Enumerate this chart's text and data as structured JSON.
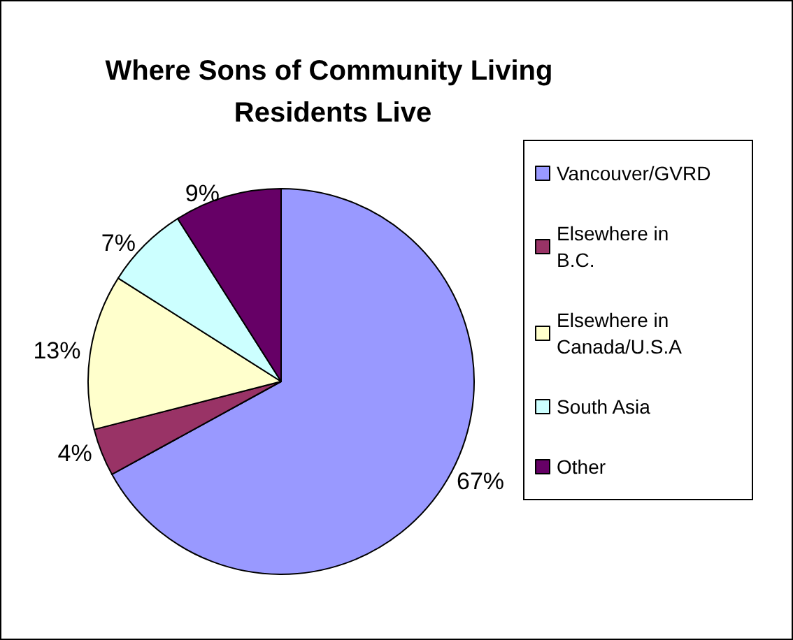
{
  "chart_data": {
    "type": "pie",
    "title": "Where Sons of Community Living Residents Live",
    "categories": [
      "Vancouver/GVRD",
      "Elsewhere in B.C.",
      "Elsewhere in Canada/U.S.A",
      "South Asia",
      "Other"
    ],
    "values": [
      67,
      4,
      13,
      7,
      9
    ],
    "value_labels": [
      "67%",
      "4%",
      "13%",
      "7%",
      "9%"
    ],
    "colors": [
      "#9999ff",
      "#993366",
      "#ffffcc",
      "#ccffff",
      "#660066"
    ],
    "legend": "right"
  }
}
